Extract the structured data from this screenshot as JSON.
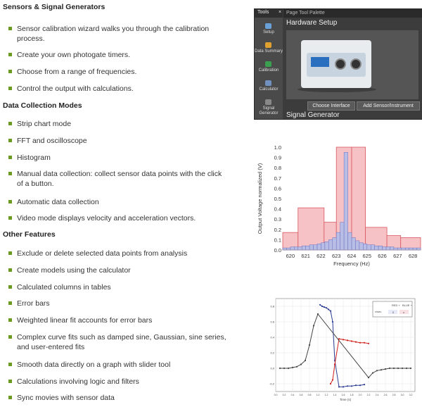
{
  "sections": [
    {
      "title": "Sensors & Signal Generators",
      "items": [
        "Sensor calibration wizard walks you through the calibration process.",
        "Create your own photogate timers.",
        "Choose from a range of frequencies.",
        "Control the output with calculations."
      ]
    },
    {
      "title": "Data Collection Modes",
      "items": [
        "Strip chart mode",
        "FFT and oscilloscope",
        "Histogram",
        "Manual data collection: collect sensor data points with the click of a button.",
        "Automatic data collection",
        "Video mode displays velocity and acceleration vectors."
      ]
    },
    {
      "title": "Other Features",
      "items": [
        "Exclude or delete selected data points from analysis",
        "Create models using the calculator",
        "Calculated columns in tables",
        "Error bars",
        "Weighted linear fit accounts for error bars",
        "Complex curve fits such as damped sine, Gaussian, sine series, and user-entered fits",
        "Smooth data directly on a graph with slider tool",
        "Calculations involving logic and filters",
        "Sync movies with sensor data"
      ]
    }
  ],
  "app": {
    "tools_title": "Tools",
    "close_glyph": "×",
    "palette_title": "Page Tool Palette",
    "hardware_title": "Hardware Setup",
    "signal_title": "Signal Generator",
    "tools": [
      {
        "label": "Setup",
        "color": "#6aa0d8"
      },
      {
        "label": "Data Summary",
        "color": "#e0a030"
      },
      {
        "label": "Calibration",
        "color": "#3aa050"
      },
      {
        "label": "Calculator",
        "color": "#7090c0"
      },
      {
        "label": "Signal Generator",
        "color": "#888888"
      }
    ],
    "buttons": [
      "Choose Interface",
      "Add Sensor/Instrument"
    ]
  },
  "chart_data": [
    {
      "type": "bar",
      "ylabel": "Output Voltage normalized (V)",
      "xlabel": "Frequency (Hz)",
      "x_ticks": [
        "620",
        "621",
        "622",
        "623",
        "624",
        "625",
        "626",
        "627",
        "628"
      ],
      "y_ticks": [
        "0.0",
        "0.1",
        "0.2",
        "0.3",
        "0.4",
        "0.5",
        "0.6",
        "0.7",
        "0.8",
        "0.9",
        "1.0"
      ],
      "xlim": [
        619.5,
        628.5
      ],
      "ylim": [
        0,
        1.0
      ],
      "wide_bins": [
        {
          "x0": 619.5,
          "x1": 620.5,
          "value": 0.17
        },
        {
          "x0": 620.5,
          "x1": 622.2,
          "value": 0.41
        },
        {
          "x0": 622.2,
          "x1": 623.0,
          "value": 0.27
        },
        {
          "x0": 623.0,
          "x1": 624.0,
          "value": 1.0
        },
        {
          "x0": 624.0,
          "x1": 624.9,
          "value": 1.0
        },
        {
          "x0": 624.9,
          "x1": 626.3,
          "value": 0.22
        },
        {
          "x0": 626.3,
          "x1": 627.2,
          "value": 0.14
        },
        {
          "x0": 627.2,
          "x1": 628.5,
          "value": 0.12
        }
      ],
      "narrow_bins": {
        "x0": 619.5,
        "width": 0.25,
        "values": [
          0.02,
          0.02,
          0.03,
          0.03,
          0.03,
          0.04,
          0.04,
          0.05,
          0.05,
          0.06,
          0.07,
          0.08,
          0.1,
          0.12,
          0.17,
          0.27,
          0.95,
          0.17,
          0.12,
          0.09,
          0.07,
          0.06,
          0.05,
          0.05,
          0.04,
          0.04,
          0.03,
          0.03,
          0.03,
          0.02,
          0.02,
          0.02,
          0.02,
          0.02,
          0.02,
          0.02
        ]
      },
      "colors": {
        "wide": "#f6c2c6",
        "wide_stroke": "#d95862",
        "narrow": "#b8bde6",
        "narrow_stroke": "#6b6fbf"
      }
    },
    {
      "type": "scatter",
      "xlabel": "Time (s)",
      "x_ticks": [
        "0.0",
        "0.2",
        "0.4",
        "0.6",
        "0.8",
        "1.0",
        "1.2",
        "1.4",
        "1.6",
        "1.8",
        "2.0",
        "2.2",
        "2.4",
        "2.6",
        "2.8",
        "3.0",
        "3.2"
      ],
      "y_ticks": [
        "0.8",
        "0.6",
        "0.4",
        "0.2",
        "0.0",
        "-0.2"
      ],
      "xlim": [
        0,
        3.3
      ],
      "ylim": [
        -0.3,
        0.9
      ],
      "legend": {
        "row1": [
          "RED +",
          "BLUE +"
        ],
        "row2": [
          "x/sec",
          "0",
          "x"
        ]
      },
      "series": [
        {
          "color": "#2b3c94",
          "x": [
            1.05,
            1.1,
            1.15,
            1.2,
            1.25,
            1.3,
            1.35,
            1.4,
            1.5,
            1.6,
            1.7,
            1.8,
            1.9,
            2.0,
            2.1
          ],
          "y": [
            0.82,
            0.8,
            0.79,
            0.78,
            0.76,
            0.74,
            0.6,
            0.1,
            -0.24,
            -0.24,
            -0.23,
            -0.23,
            -0.22,
            -0.22,
            -0.21
          ]
        },
        {
          "color": "#d0201c",
          "x": [
            1.3,
            1.35,
            1.4,
            1.5,
            1.6,
            1.7,
            1.8,
            1.9,
            2.0,
            2.1,
            2.2
          ],
          "y": [
            -0.2,
            -0.15,
            0.05,
            0.38,
            0.37,
            0.36,
            0.35,
            0.34,
            0.33,
            0.33,
            0.32
          ]
        },
        {
          "color": "#444444",
          "x": [
            0.1,
            0.2,
            0.3,
            0.4,
            0.5,
            0.6,
            0.7,
            0.8,
            0.9,
            1.0,
            2.2,
            2.3,
            2.4,
            2.5,
            2.6,
            2.7,
            2.8,
            2.9,
            3.0,
            3.1,
            3.2
          ],
          "y": [
            0.0,
            0.0,
            0.0,
            0.01,
            0.02,
            0.05,
            0.1,
            0.3,
            0.55,
            0.7,
            -0.12,
            -0.06,
            -0.03,
            -0.02,
            -0.01,
            0.0,
            0.0,
            0.0,
            0.0,
            0.0,
            0.0
          ]
        }
      ]
    }
  ]
}
